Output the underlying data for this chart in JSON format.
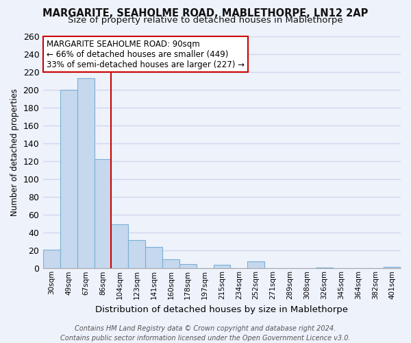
{
  "title": "MARGARITE, SEAHOLME ROAD, MABLETHORPE, LN12 2AP",
  "subtitle": "Size of property relative to detached houses in Mablethorpe",
  "xlabel": "Distribution of detached houses by size in Mablethorpe",
  "ylabel": "Number of detached properties",
  "bar_labels": [
    "30sqm",
    "49sqm",
    "67sqm",
    "86sqm",
    "104sqm",
    "123sqm",
    "141sqm",
    "160sqm",
    "178sqm",
    "197sqm",
    "215sqm",
    "234sqm",
    "252sqm",
    "271sqm",
    "289sqm",
    "308sqm",
    "326sqm",
    "345sqm",
    "364sqm",
    "382sqm",
    "401sqm"
  ],
  "bar_values": [
    21,
    200,
    213,
    122,
    49,
    32,
    24,
    10,
    5,
    0,
    4,
    0,
    8,
    0,
    0,
    0,
    1,
    0,
    0,
    0,
    2
  ],
  "bar_fill_color": "#c5d8ee",
  "bar_edge_color": "#7aafd4",
  "vline_color": "#cc0000",
  "ylim": [
    0,
    260
  ],
  "yticks": [
    0,
    20,
    40,
    60,
    80,
    100,
    120,
    140,
    160,
    180,
    200,
    220,
    240,
    260
  ],
  "annotation_title": "MARGARITE SEAHOLME ROAD: 90sqm",
  "annotation_line1": "← 66% of detached houses are smaller (449)",
  "annotation_line2": "33% of semi-detached houses are larger (227) →",
  "footnote1": "Contains HM Land Registry data © Crown copyright and database right 2024.",
  "footnote2": "Contains public sector information licensed under the Open Government Licence v3.0.",
  "background_color": "#eef2fb",
  "grid_color": "#d0d8ee",
  "spine_color": "#aaaaaa",
  "title_fontsize": 10.5,
  "subtitle_fontsize": 9.5,
  "ylabel_fontsize": 8.5,
  "xlabel_fontsize": 9.5,
  "ytick_fontsize": 9,
  "xtick_fontsize": 7.5,
  "annotation_fontsize": 8.5,
  "footnote_fontsize": 7
}
